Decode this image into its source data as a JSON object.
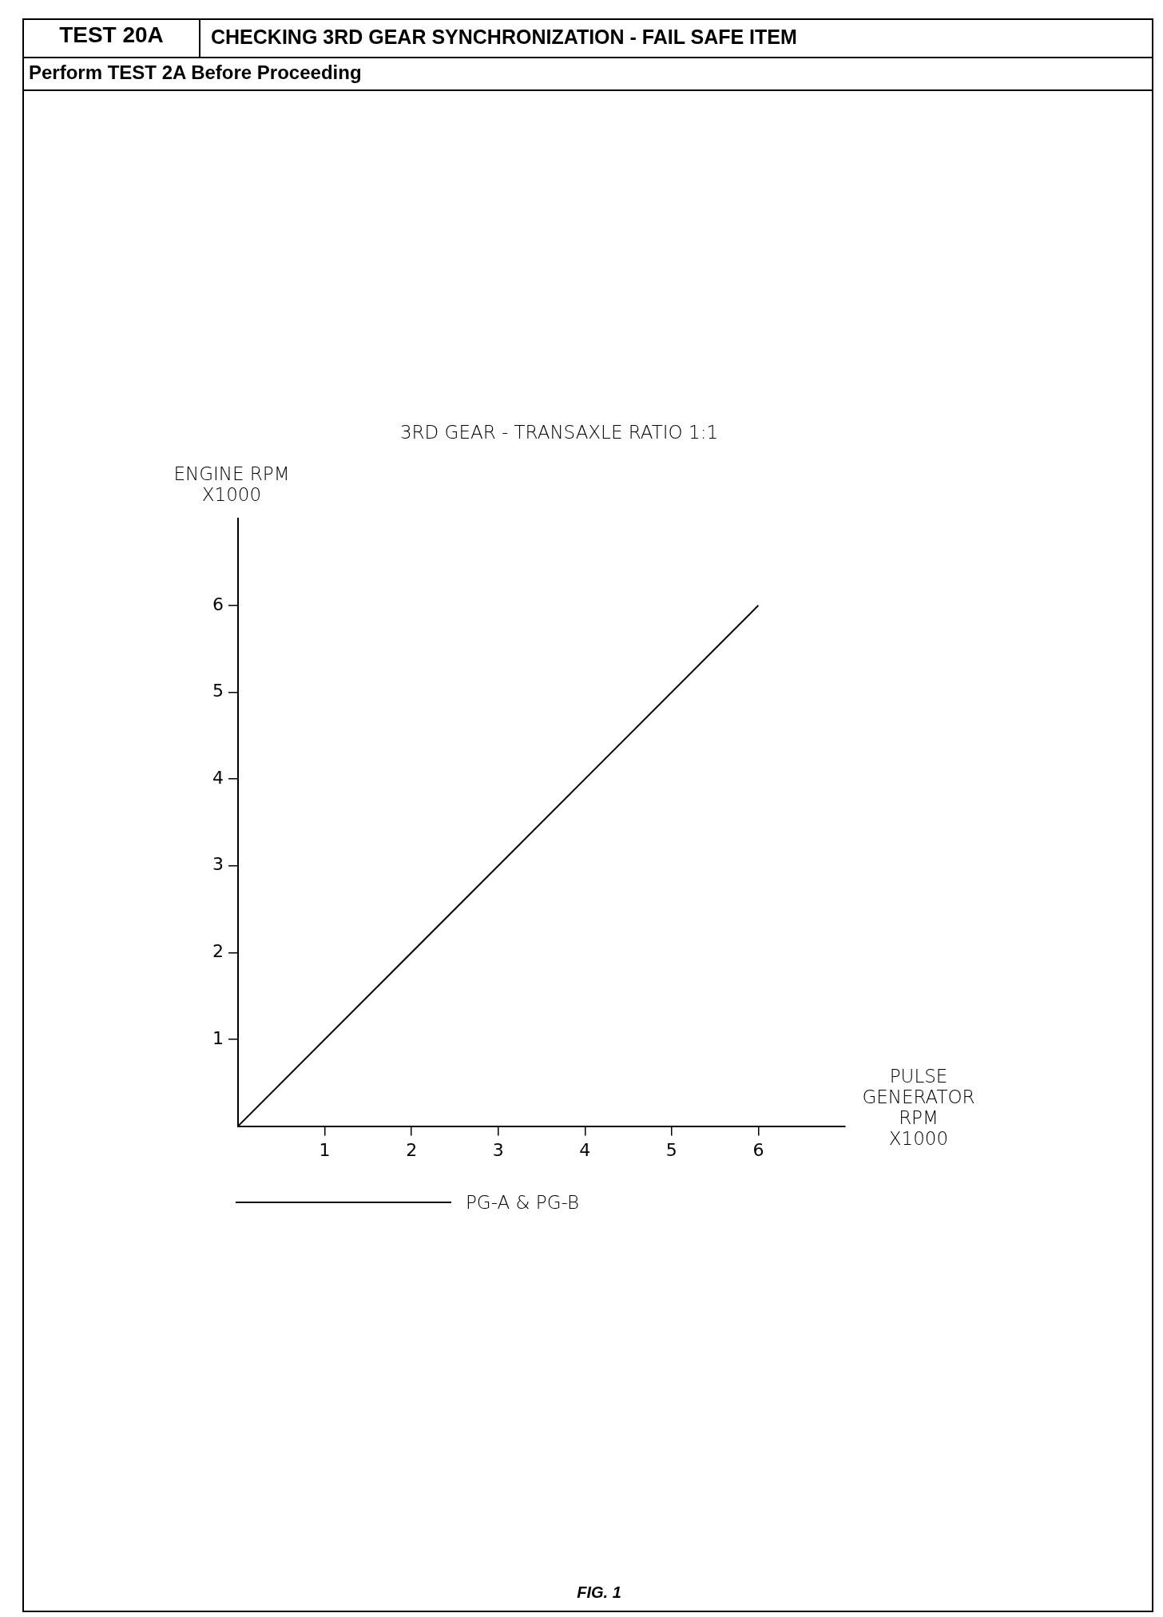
{
  "chart_data": {
    "type": "line",
    "title": "3RD GEAR - TRANSAXLE RATIO 1:1",
    "xlabel": "PULSE GENERATOR RPM X1000",
    "ylabel": "ENGINE RPM X1000",
    "annotations": [
      "TEST 20A",
      "CHECKING 3RD GEAR SYNCHRONIZATION - FAIL SAFE ITEM",
      "Perform TEST 2A Before Proceeding",
      "FIG. 1"
    ],
    "series": [
      {
        "name": "PG-A & PG-B",
        "color": "#000000",
        "x": [
          0,
          6
        ],
        "values": [
          0,
          6
        ]
      }
    ],
    "xlim": [
      0,
      7
    ],
    "ylim": [
      0,
      7
    ],
    "xticks": [
      1,
      2,
      3,
      4,
      5,
      6
    ],
    "yticks": [
      1,
      2,
      3,
      4,
      5,
      6
    ],
    "grid": false,
    "legend": "bottom",
    "marker": "none",
    "line_style": "solid"
  }
}
